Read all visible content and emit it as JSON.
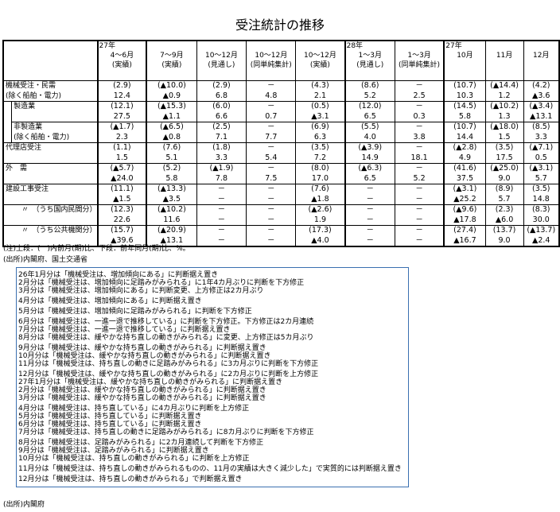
{
  "title": "受注統計の推移",
  "table": {
    "headers": [
      {
        "year": "27年",
        "l1": "4～6月",
        "l2": "(実績)"
      },
      {
        "year": "",
        "l1": "7～9月",
        "l2": "(実績)"
      },
      {
        "year": "",
        "l1": "10～12月",
        "l2": "(見通し)"
      },
      {
        "year": "",
        "l1": "10～12月",
        "l2": "(同単純集計)"
      },
      {
        "year": "",
        "l1": "10～12月",
        "l2": "(実績)"
      },
      {
        "year": "28年",
        "l1": "1～3月",
        "l2": "(見通し)"
      },
      {
        "year": "",
        "l1": "1～3月",
        "l2": "(同単純集計)"
      },
      {
        "year": "27年",
        "l1": "10月",
        "l2": ""
      },
      {
        "year": "",
        "l1": "11月",
        "l2": ""
      },
      {
        "year": "",
        "l1": "12月",
        "l2": ""
      }
    ],
    "rows": [
      {
        "label1": "機械受注・民需",
        "label2": "(除く船舶・電力)",
        "top": [
          "(2.9)",
          "(▲10.0)",
          "(2.9)",
          "－",
          "(4.3)",
          "(8.6)",
          "－",
          "(10.7)",
          "(▲14.4)",
          "(4.2)"
        ],
        "bottom": [
          "12.4",
          "▲0.9",
          "6.8",
          "4.8",
          "2.1",
          "5.2",
          "2.5",
          "10.3",
          "1.2",
          "▲3.6"
        ]
      },
      {
        "label1": "製造業",
        "label2": "",
        "top": [
          "(12.1)",
          "(▲15.3)",
          "(6.0)",
          "－",
          "(0.5)",
          "(12.0)",
          "－",
          "(14.5)",
          "(▲10.2)",
          "(▲3.4)"
        ],
        "bottom": [
          "27.5",
          "▲1.1",
          "6.6",
          "0.7",
          "▲3.1",
          "6.5",
          "0.3",
          "5.8",
          "1.3",
          "▲13.1"
        ]
      },
      {
        "label1": "非製造業",
        "label2": "(除く船舶・電力)",
        "top": [
          "(▲1.7)",
          "(▲6.5)",
          "(2.5)",
          "－",
          "(6.9)",
          "(5.5)",
          "－",
          "(10.7)",
          "(▲18.0)",
          "(8.5)"
        ],
        "bottom": [
          "2.3",
          "▲0.8",
          "7.1",
          "7.7",
          "6.3",
          "4.0",
          "3.8",
          "14.4",
          "1.5",
          "3.3"
        ]
      },
      {
        "label1": "代理店受注",
        "label2": "",
        "top": [
          "(1.1)",
          "(7.6)",
          "(1.8)",
          "－",
          "(3.5)",
          "(▲3.9)",
          "－",
          "(▲2.8)",
          "(3.5)",
          "(▲7.1)"
        ],
        "bottom": [
          "1.5",
          "5.1",
          "3.3",
          "5.4",
          "7.2",
          "14.9",
          "18.1",
          "4.9",
          "17.5",
          "0.5"
        ]
      },
      {
        "label1": "外　需",
        "label2": "",
        "top": [
          "(▲5.7)",
          "(5.2)",
          "(▲1.9)",
          "－",
          "(8.0)",
          "(▲6.3)",
          "－",
          "(41.6)",
          "(▲25.0)",
          "(▲3.1)"
        ],
        "bottom": [
          "▲24.0",
          "5.8",
          "7.8",
          "7.5",
          "17.0",
          "6.5",
          "5.2",
          "37.5",
          "9.0",
          "5.7"
        ]
      },
      {
        "label1": "建設工事受注",
        "label2": "",
        "top": [
          "(11.1)",
          "(▲13.3)",
          "－",
          "－",
          "(7.6)",
          "－",
          "－",
          "(▲3.1)",
          "(8.9)",
          "(3.5)"
        ],
        "bottom": [
          "▲1.5",
          "▲3.5",
          "－",
          "－",
          "▲1.8",
          "－",
          "－",
          "▲25.2",
          "5.7",
          "14.8"
        ]
      },
      {
        "label1": "〃　（うち国内民間分）",
        "label2": "",
        "top": [
          "(12.3)",
          "(▲10.2)",
          "－",
          "－",
          "(▲2.6)",
          "－",
          "－",
          "(▲9.6)",
          "(2.3)",
          "(8.3)"
        ],
        "bottom": [
          "22.6",
          "11.6",
          "－",
          "－",
          "1.9",
          "－",
          "－",
          "▲17.8",
          "▲6.0",
          "30.0"
        ]
      },
      {
        "label1": "〃　（うち公共機関分）",
        "label2": "",
        "top": [
          "(15.7)",
          "(▲20.9)",
          "－",
          "－",
          "(17.3)",
          "－",
          "－",
          "(27.4)",
          "(13.7)",
          "(▲13.7)"
        ],
        "bottom": [
          "▲39.6",
          "▲13.1",
          "－",
          "－",
          "▲4.0",
          "－",
          "－",
          "▲16.7",
          "9.0",
          "▲2.4"
        ]
      }
    ]
  },
  "note": "(注)上段：(　)内前月(期)比、下段：前年同月(期)比、%。",
  "source1": "(出所)内閣府、国土交通省",
  "judgments": [
    [
      "26年1月分は「機械受注は、増加傾向にある」に判断据え置き",
      "2月分は「機械受注は、増加傾向に足踏みがみられる」に1年4カ月ぶりに判断を下方修正",
      "3月分は「機械受注は、増加傾向にある」に判断変更、上方修正は2カ月ぶり"
    ],
    [
      "4月分は「機械受注は、増加傾向にある」に判断据え置き"
    ],
    [
      "5月分は「機械受注は、増加傾向に足踏みがみられる」に判断を下方修正"
    ],
    [
      "6月分は「機械受注は、一進一退で推移している」に判断を下方修正。下方修正は2カ月連続",
      "7月分は「機械受注は、一進一退で推移している」に判断据え置き",
      "8月分は「機械受注は、緩やかな持ち直しの動きがみられる」に変更、上方修正は5カ月ぶり"
    ],
    [
      "9月分は「機械受注は、緩やかな持ち直しの動きがみられる」に判断据え置き",
      "10月分は「機械受注は、緩やかな持ち直しの動きがみられる」に判断据え置き",
      "11月分は「機械受注は、持ち直しの動きに足踏みがみられる」に3カ月ぶりに判断を下方修正"
    ],
    [
      "12月分は「機械受注は、緩やかな持ち直しの動きがみられる」に2カ月ぶりに判断を上方修正",
      "27年1月分は「機械受注は、緩やかな持ち直しの動きがみられる」に判断据え置き",
      "2月分は「機械受注は、緩やかな持ち直しの動きがみられる」に判断据え置き",
      "3月分は「機械受注は、緩やかな持ち直しの動きがみられる」に判断据え置き"
    ],
    [
      "4月分は「機械受注は、持ち直している」に4カ月ぶりに判断を上方修正",
      "5月分は「機械受注は、持ち直している」に判断据え置き",
      "6月分は「機械受注は、持ち直している」に判断据え置き",
      "7月分は「機械受注は、持ち直しの動きに足踏みがみられる」に8カ月ぶりに判断を下方修正"
    ],
    [
      "8月分は「機械受注は、足踏みがみられる」に2カ月連続して判断を下方修正",
      "9月分は「機械受注は、足踏みがみられる」に判断据え置き",
      "10月分は「機械受注は、持ち直しの動きがみられる」に判断を上方修正"
    ],
    [
      "11月分は「機械受注は、持ち直しの動きがみられるものの、11月の実績は大きく減少した」で実質的には判断据え置き"
    ],
    [
      "12月分は「機械受注は、持ち直しの動きがみられる」で判断据え置き"
    ]
  ],
  "source2": "(出所)内閣府"
}
